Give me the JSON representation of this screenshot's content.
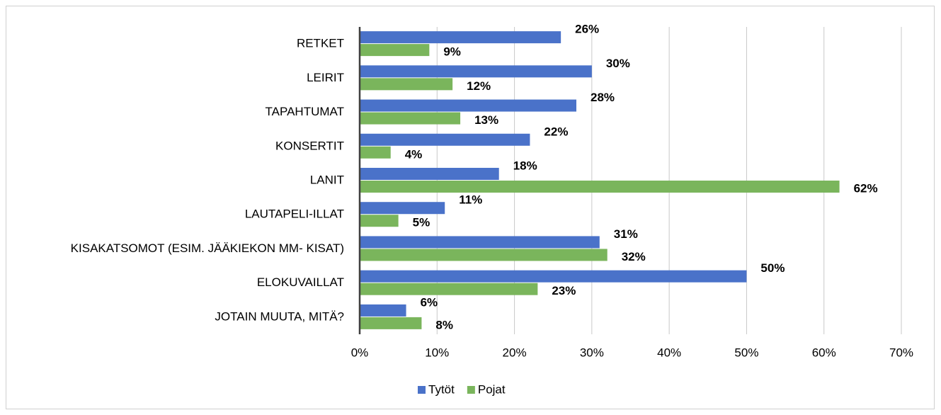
{
  "chart_data": {
    "type": "bar",
    "orientation": "horizontal",
    "categories": [
      "RETKET",
      "LEIRIT",
      "TAPAHTUMAT",
      "KONSERTIT",
      "LANIT",
      "LAUTAPELI-ILLAT",
      "KISAKATSOMOT (ESIM. JÄÄKIEKON MM- KISAT)",
      "ELOKUVAILLAT",
      "JOTAIN MUUTA, MITÄ?"
    ],
    "series": [
      {
        "name": "Tytöt",
        "color": "#4a72c9",
        "values": [
          26,
          30,
          28,
          22,
          18,
          11,
          31,
          50,
          6
        ],
        "value_labels": [
          "26%",
          "30%",
          "28%",
          "22%",
          "18%",
          "11%",
          "31%",
          "50%",
          "6%"
        ]
      },
      {
        "name": "Pojat",
        "color": "#7ab55c",
        "values": [
          9,
          12,
          13,
          4,
          62,
          5,
          32,
          23,
          8
        ],
        "value_labels": [
          "9%",
          "12%",
          "13%",
          "4%",
          "62%",
          "5%",
          "32%",
          "23%",
          "8%"
        ]
      }
    ],
    "xlim": [
      0,
      70
    ],
    "xticks": [
      {
        "value": 0,
        "label": "0%"
      },
      {
        "value": 10,
        "label": "10%"
      },
      {
        "value": 20,
        "label": "20%"
      },
      {
        "value": 30,
        "label": "30%"
      },
      {
        "value": 40,
        "label": "40%"
      },
      {
        "value": 50,
        "label": "50%"
      },
      {
        "value": 60,
        "label": "60%"
      },
      {
        "value": 70,
        "label": "70%"
      }
    ],
    "grid": true,
    "legend": "bottom"
  }
}
